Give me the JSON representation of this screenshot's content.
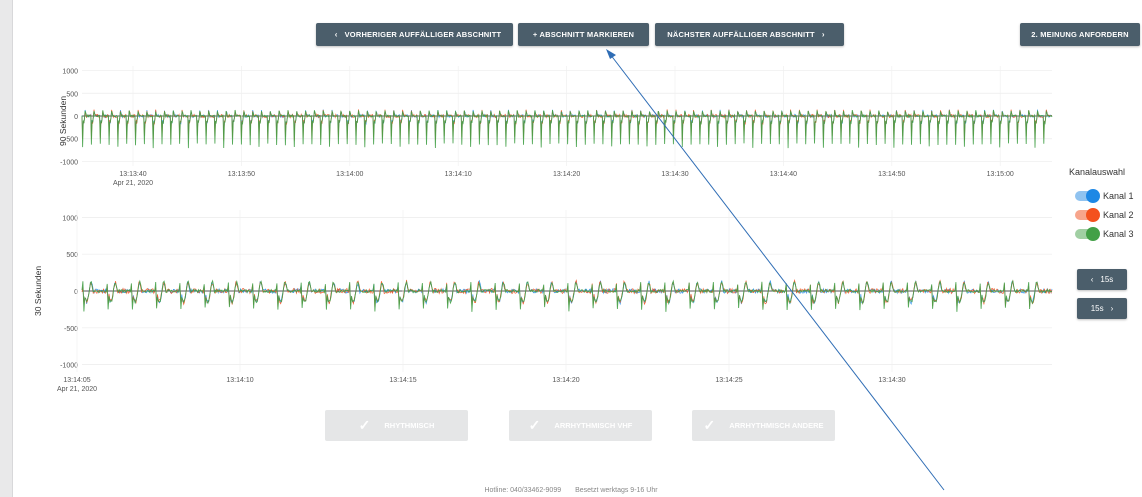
{
  "toolbar": {
    "prev_label": "VORHERIGER AUFFÄLLIGER ABSCHNITT",
    "mark_label": "+  ABSCHNITT MARKIEREN",
    "next_label": "NÄCHSTER AUFFÄLLIGER ABSCHNITT",
    "second_opinion_label": "2. MEINUNG ANFORDERN"
  },
  "chart90": {
    "ylabel": "90 Sekunden",
    "yticks": [
      "1000",
      "500",
      "0",
      "-500",
      "-1000"
    ],
    "xticks": [
      "13:13:40",
      "13:13:50",
      "13:14:00",
      "13:14:10",
      "13:14:20",
      "13:14:30",
      "13:14:40",
      "13:14:50",
      "13:15:00"
    ],
    "date": "Apr 21, 2020"
  },
  "chart30": {
    "ylabel": "30 Sekunden",
    "yticks": [
      "1000",
      "500",
      "0",
      "-500",
      "-1000"
    ],
    "xticks": [
      "13:14:05",
      "13:14:10",
      "13:14:15",
      "13:14:20",
      "13:14:25",
      "13:14:30"
    ],
    "date": "Apr 21, 2020"
  },
  "legend": {
    "title": "Kanalauswahl",
    "channels": [
      {
        "label": "Kanal 1",
        "color": "#1e88e5",
        "track": "#90c3f0"
      },
      {
        "label": "Kanal 2",
        "color": "#f4511e",
        "track": "#f7a58c"
      },
      {
        "label": "Kanal 3",
        "color": "#43a047",
        "track": "#a1cfa3"
      }
    ]
  },
  "nav": {
    "back_label": "15s",
    "forward_label": "15s"
  },
  "classify": {
    "btn1": "RHYTHMISCH",
    "btn2": "ARRHYTHMISCH VHF",
    "btn3": "ARRHYTHMISCH ANDERE"
  },
  "footer": {
    "hotline": "Hotline:   040/33462-9099",
    "hours": "Besetzt werktags 9-16 Uhr"
  },
  "chart_data": [
    {
      "type": "line",
      "title": "",
      "ylabel": "90 Sekunden",
      "ylim": [
        -1100,
        1100
      ],
      "x_start": "13:13:35",
      "x_end": "13:15:08",
      "beat_count": 110,
      "series": [
        {
          "name": "Kanal 1"
        },
        {
          "name": "Kanal 2"
        },
        {
          "name": "Kanal 3"
        }
      ]
    },
    {
      "type": "line",
      "title": "",
      "ylabel": "30 Sekunden",
      "ylim": [
        -1100,
        1100
      ],
      "x_start": "13:14:05",
      "x_end": "13:14:35",
      "beat_count": 40,
      "series": [
        {
          "name": "Kanal 1"
        },
        {
          "name": "Kanal 2"
        },
        {
          "name": "Kanal 3"
        }
      ]
    }
  ]
}
